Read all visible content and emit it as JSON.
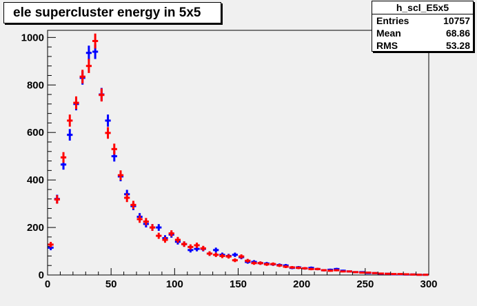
{
  "title": "ele supercluster energy in 5x5",
  "stats": {
    "name": "h_scl_E5x5",
    "rows": [
      {
        "label": "Entries",
        "value": "10757"
      },
      {
        "label": "Mean",
        "value": "68.86"
      },
      {
        "label": "RMS",
        "value": "53.28"
      }
    ]
  },
  "colors": {
    "series_blue": "#0000ff",
    "series_red": "#ff0000",
    "frame_bg": "#f0f0f0"
  },
  "chart_data": {
    "type": "scatter",
    "title": "ele supercluster energy in 5x5",
    "xlim": [
      0,
      300
    ],
    "ylim": [
      0,
      1030
    ],
    "xticks": [
      0,
      50,
      100,
      150,
      200,
      250,
      300
    ],
    "yticks": [
      0,
      200,
      400,
      600,
      800,
      1000
    ],
    "grid": false,
    "series": [
      {
        "color": "#0000ff",
        "x": [
          0,
          5,
          10,
          15,
          20,
          25,
          30,
          35,
          40,
          45,
          50,
          55,
          60,
          65,
          70,
          75,
          80,
          85,
          90,
          95,
          100,
          105,
          110,
          115,
          120,
          125,
          130,
          135,
          140,
          145,
          150,
          155,
          160,
          165,
          170,
          175,
          180,
          185,
          190,
          195,
          200,
          205,
          210,
          215,
          220,
          225,
          230,
          235,
          240,
          245,
          250,
          255,
          260,
          265,
          270,
          275,
          280,
          285,
          290,
          295
        ],
        "values": [
          115,
          320,
          465,
          590,
          720,
          830,
          935,
          940,
          760,
          650,
          500,
          415,
          340,
          290,
          245,
          215,
          200,
          200,
          155,
          170,
          140,
          130,
          105,
          110,
          110,
          90,
          105,
          85,
          80,
          85,
          75,
          55,
          55,
          50,
          48,
          45,
          42,
          40,
          30,
          32,
          28,
          30,
          25,
          20,
          22,
          25,
          18,
          15,
          12,
          12,
          8,
          8,
          5,
          5,
          3,
          3,
          2,
          2,
          1,
          1
        ]
      },
      {
        "color": "#ff0000",
        "x": [
          0,
          5,
          10,
          15,
          20,
          25,
          30,
          35,
          40,
          45,
          50,
          55,
          60,
          65,
          70,
          75,
          80,
          85,
          90,
          95,
          100,
          105,
          110,
          115,
          120,
          125,
          130,
          135,
          140,
          145,
          150,
          155,
          160,
          165,
          170,
          175,
          180,
          185,
          190,
          195,
          200,
          205,
          210,
          215,
          220,
          225,
          230,
          235,
          240,
          245,
          250,
          255,
          260,
          265,
          270,
          275,
          280,
          285,
          290,
          295
        ],
        "values": [
          128,
          318,
          495,
          650,
          725,
          835,
          880,
          985,
          758,
          598,
          530,
          420,
          325,
          295,
          235,
          225,
          200,
          165,
          148,
          175,
          148,
          130,
          118,
          125,
          112,
          90,
          85,
          80,
          78,
          62,
          78,
          60,
          50,
          50,
          45,
          46,
          40,
          35,
          32,
          30,
          28,
          25,
          25,
          20,
          18,
          20,
          15,
          15,
          12,
          10,
          10,
          8,
          6,
          5,
          4,
          4,
          3,
          2,
          1,
          1
        ]
      }
    ]
  }
}
